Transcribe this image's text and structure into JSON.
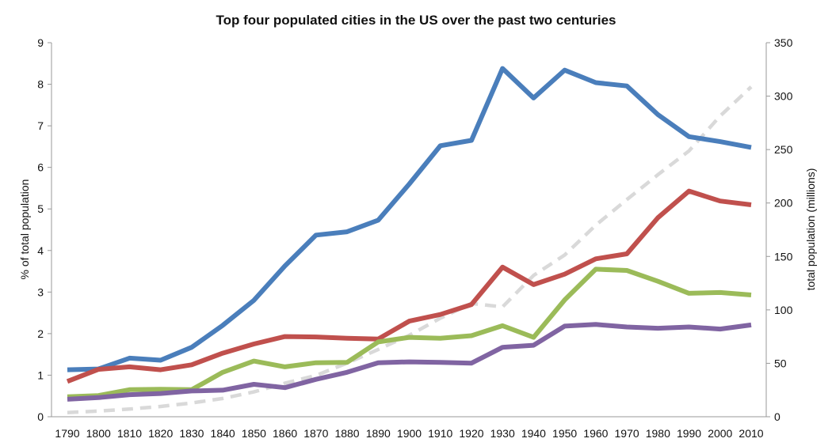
{
  "chart_data": {
    "type": "line",
    "title": "Top four populated cities in the US over the past two centuries",
    "ylabel": "% of total population",
    "y2label": "total population (millions)",
    "xlabel": "",
    "x": [
      1790,
      1800,
      1810,
      1820,
      1830,
      1840,
      1850,
      1860,
      1870,
      1880,
      1890,
      1900,
      1910,
      1920,
      1930,
      1940,
      1950,
      1960,
      1970,
      1980,
      1990,
      2000,
      2010
    ],
    "ylim": [
      0,
      9
    ],
    "y_ticks": [
      0,
      1,
      2,
      3,
      4,
      5,
      6,
      7,
      8,
      9
    ],
    "y2lim": [
      0,
      350
    ],
    "y2_ticks": [
      0,
      50,
      100,
      150,
      200,
      250,
      300,
      350
    ],
    "grid": false,
    "legend": "none",
    "series": [
      {
        "axis": "left",
        "color": "#4a7ebb",
        "style": "solid",
        "values": [
          1.13,
          1.15,
          1.41,
          1.36,
          1.67,
          2.2,
          2.8,
          3.63,
          4.37,
          4.45,
          4.73,
          5.6,
          6.52,
          6.65,
          8.38,
          7.67,
          8.34,
          8.04,
          7.96,
          7.27,
          6.74,
          6.62,
          6.48
        ]
      },
      {
        "axis": "left",
        "color": "#c0504d",
        "style": "solid",
        "values": [
          0.85,
          1.14,
          1.2,
          1.13,
          1.25,
          1.53,
          1.75,
          1.93,
          1.92,
          1.89,
          1.87,
          2.3,
          2.46,
          2.7,
          3.6,
          3.18,
          3.43,
          3.8,
          3.92,
          4.79,
          5.43,
          5.19,
          5.1
        ]
      },
      {
        "axis": "left",
        "color": "#9bbb59",
        "style": "solid",
        "values": [
          0.48,
          0.51,
          0.65,
          0.66,
          0.65,
          1.07,
          1.34,
          1.2,
          1.3,
          1.31,
          1.8,
          1.91,
          1.89,
          1.95,
          2.19,
          1.91,
          2.81,
          3.55,
          3.52,
          3.26,
          2.97,
          2.99,
          2.93
        ]
      },
      {
        "axis": "left",
        "color": "#8064a2",
        "style": "solid",
        "values": [
          0.42,
          0.46,
          0.53,
          0.56,
          0.62,
          0.64,
          0.78,
          0.7,
          0.9,
          1.07,
          1.3,
          1.32,
          1.31,
          1.29,
          1.67,
          1.72,
          2.18,
          2.22,
          2.16,
          2.13,
          2.16,
          2.11,
          2.21
        ]
      },
      {
        "axis": "right",
        "color": "#d9d9d9",
        "style": "dashed",
        "values": [
          3.9,
          5.3,
          7.2,
          9.6,
          12.9,
          17.1,
          23.2,
          31.4,
          38.6,
          50.2,
          63.0,
          76.2,
          92.2,
          106.0,
          102.8,
          132.2,
          151.3,
          179.3,
          203.2,
          226.5,
          248.7,
          281.4,
          308.7
        ]
      }
    ]
  }
}
